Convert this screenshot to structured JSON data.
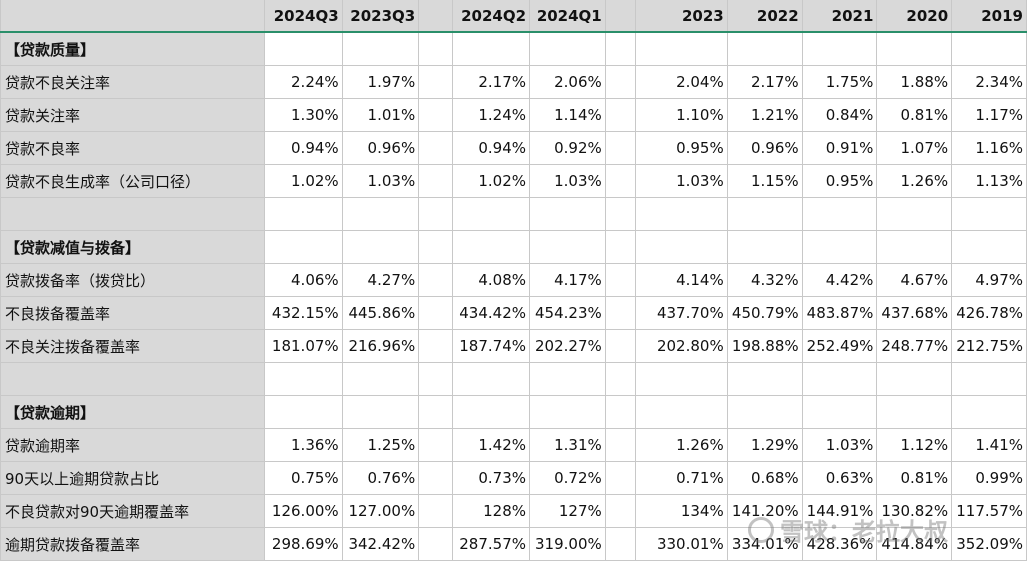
{
  "columns": [
    "",
    "2024Q3",
    "2023Q3",
    "",
    "2024Q2",
    "2024Q1",
    "",
    "2023",
    "2022",
    "2021",
    "2020",
    "2019"
  ],
  "rows": [
    {
      "label": "【贷款质量】",
      "bold": true,
      "values": [
        "",
        "",
        "",
        "",
        "",
        "",
        "",
        "",
        "",
        ""
      ]
    },
    {
      "label": "贷款不良关注率",
      "values": [
        "2.24%",
        "1.97%",
        "2.17%",
        "2.06%",
        "2.04%",
        "2.17%",
        "1.75%",
        "1.88%",
        "2.34%"
      ]
    },
    {
      "label": "贷款关注率",
      "values": [
        "1.30%",
        "1.01%",
        "1.24%",
        "1.14%",
        "1.10%",
        "1.21%",
        "0.84%",
        "0.81%",
        "1.17%"
      ]
    },
    {
      "label": "贷款不良率",
      "values": [
        "0.94%",
        "0.96%",
        "0.94%",
        "0.92%",
        "0.95%",
        "0.96%",
        "0.91%",
        "1.07%",
        "1.16%"
      ]
    },
    {
      "label": "贷款不良生成率（公司口径）",
      "values": [
        "1.02%",
        "1.03%",
        "1.02%",
        "1.03%",
        "1.03%",
        "1.15%",
        "0.95%",
        "1.26%",
        "1.13%"
      ]
    },
    {
      "label": "",
      "values": [
        "",
        "",
        "",
        "",
        "",
        "",
        "",
        "",
        ""
      ]
    },
    {
      "label": "【贷款减值与拨备】",
      "bold": true,
      "values": [
        "",
        "",
        "",
        "",
        "",
        "",
        "",
        "",
        ""
      ]
    },
    {
      "label": "贷款拨备率（拨贷比）",
      "values": [
        "4.06%",
        "4.27%",
        "4.08%",
        "4.17%",
        "4.14%",
        "4.32%",
        "4.42%",
        "4.67%",
        "4.97%"
      ]
    },
    {
      "label": "不良拨备覆盖率",
      "values": [
        "432.15%",
        "445.86%",
        "434.42%",
        "454.23%",
        "437.70%",
        "450.79%",
        "483.87%",
        "437.68%",
        "426.78%"
      ]
    },
    {
      "label": "不良关注拨备覆盖率",
      "values": [
        "181.07%",
        "216.96%",
        "187.74%",
        "202.27%",
        "202.80%",
        "198.88%",
        "252.49%",
        "248.77%",
        "212.75%"
      ]
    },
    {
      "label": "",
      "values": [
        "",
        "",
        "",
        "",
        "",
        "",
        "",
        "",
        ""
      ]
    },
    {
      "label": "【贷款逾期】",
      "bold": true,
      "values": [
        "",
        "",
        "",
        "",
        "",
        "",
        "",
        "",
        ""
      ]
    },
    {
      "label": "贷款逾期率",
      "values": [
        "1.36%",
        "1.25%",
        "1.42%",
        "1.31%",
        "1.26%",
        "1.29%",
        "1.03%",
        "1.12%",
        "1.41%"
      ]
    },
    {
      "label": "90天以上逾期贷款占比",
      "values": [
        "0.75%",
        "0.76%",
        "0.73%",
        "0.72%",
        "0.71%",
        "0.68%",
        "0.63%",
        "0.81%",
        "0.99%"
      ]
    },
    {
      "label": "不良贷款对90天逾期覆盖率",
      "values": [
        "126.00%",
        "127.00%",
        "128%",
        "127%",
        "134%",
        "141.20%",
        "144.91%",
        "130.82%",
        "117.57%"
      ]
    },
    {
      "label": "逾期贷款拨备覆盖率",
      "values": [
        "298.69%",
        "342.42%",
        "287.57%",
        "319.00%",
        "330.01%",
        "334.01%",
        "428.36%",
        "414.84%",
        "352.09%"
      ]
    }
  ],
  "watermark": "雪球：老拉大叔"
}
